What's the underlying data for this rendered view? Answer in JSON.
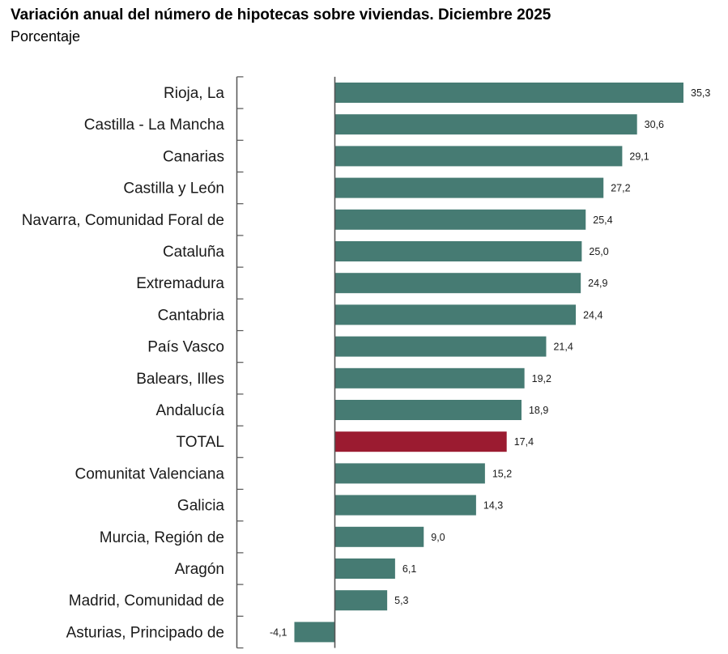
{
  "header": {
    "title": "Variación anual del número de hipotecas sobre viviendas. Diciembre 2025",
    "subtitle": "Porcentaje"
  },
  "colors": {
    "bar": "#467b73",
    "highlight": "#9b1b30",
    "axis": "#555555",
    "text": "#1a1a1a"
  },
  "chart_data": {
    "type": "bar",
    "orientation": "horizontal",
    "title": "Variación anual del número de hipotecas sobre viviendas. Diciembre 2025",
    "subtitle": "Porcentaje",
    "xlabel": "",
    "ylabel": "",
    "xlim": [
      -4.1,
      35.3
    ],
    "highlight": "TOTAL",
    "categories": [
      "Rioja, La",
      "Castilla - La Mancha",
      "Canarias",
      "Castilla y León",
      "Navarra, Comunidad Foral de",
      "Cataluña",
      "Extremadura",
      "Cantabria",
      "País Vasco",
      "Balears, Illes",
      "Andalucía",
      "TOTAL",
      "Comunitat Valenciana",
      "Galicia",
      "Murcia, Región de",
      "Aragón",
      "Madrid, Comunidad de",
      "Asturias, Principado de"
    ],
    "values": [
      35.3,
      30.6,
      29.1,
      27.2,
      25.4,
      25.0,
      24.9,
      24.4,
      21.4,
      19.2,
      18.9,
      17.4,
      15.2,
      14.3,
      9.0,
      6.1,
      5.3,
      -4.1
    ],
    "value_labels": [
      "35,3",
      "30,6",
      "29,1",
      "27,2",
      "25,4",
      "25,0",
      "24,9",
      "24,4",
      "21,4",
      "19,2",
      "18,9",
      "17,4",
      "15,2",
      "14,3",
      "9,0",
      "6,1",
      "5,3",
      "-4,1"
    ]
  }
}
